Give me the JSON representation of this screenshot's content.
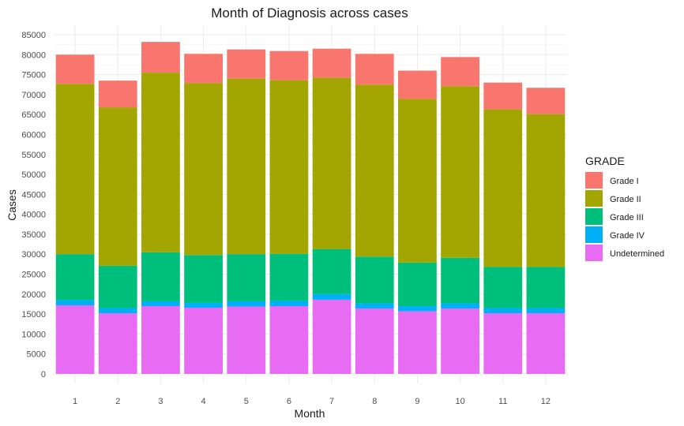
{
  "chart_data": {
    "type": "bar",
    "stacked": true,
    "title": "Month of Diagnosis across cases",
    "xlabel": "Month",
    "ylabel": "Cases",
    "ylim": [
      0,
      87000
    ],
    "yticks": [
      0,
      5000,
      10000,
      15000,
      20000,
      25000,
      30000,
      35000,
      40000,
      45000,
      50000,
      55000,
      60000,
      65000,
      70000,
      75000,
      80000,
      85000
    ],
    "grid": true,
    "legend": {
      "title": "GRADE",
      "position": "right"
    },
    "categories": [
      "1",
      "2",
      "3",
      "4",
      "5",
      "6",
      "7",
      "8",
      "9",
      "10",
      "11",
      "12"
    ],
    "series": [
      {
        "name": "Undetermined",
        "color": "#E76BF3",
        "values": [
          17200,
          15200,
          17000,
          16600,
          16900,
          17000,
          18600,
          16400,
          15700,
          16400,
          15200,
          15200
        ]
      },
      {
        "name": "Grade IV",
        "color": "#00B0F6",
        "values": [
          1300,
          1300,
          1200,
          1200,
          1300,
          1300,
          1400,
          1300,
          1300,
          1300,
          1300,
          1300
        ]
      },
      {
        "name": "Grade III",
        "color": "#00BF7D",
        "values": [
          11500,
          10600,
          12300,
          12000,
          11800,
          11800,
          11300,
          11700,
          10900,
          11400,
          10300,
          10300
        ]
      },
      {
        "name": "Grade II",
        "color": "#A3A500",
        "values": [
          42700,
          39700,
          45000,
          43100,
          44000,
          43500,
          42900,
          43100,
          41000,
          43000,
          39500,
          38300
        ]
      },
      {
        "name": "Grade I",
        "color": "#F8766D",
        "values": [
          7300,
          6700,
          7700,
          7300,
          7300,
          7300,
          7300,
          7700,
          7100,
          7300,
          6700,
          6600
        ]
      }
    ],
    "legend_order": [
      "Grade I",
      "Grade II",
      "Grade III",
      "Grade IV",
      "Undetermined"
    ]
  }
}
